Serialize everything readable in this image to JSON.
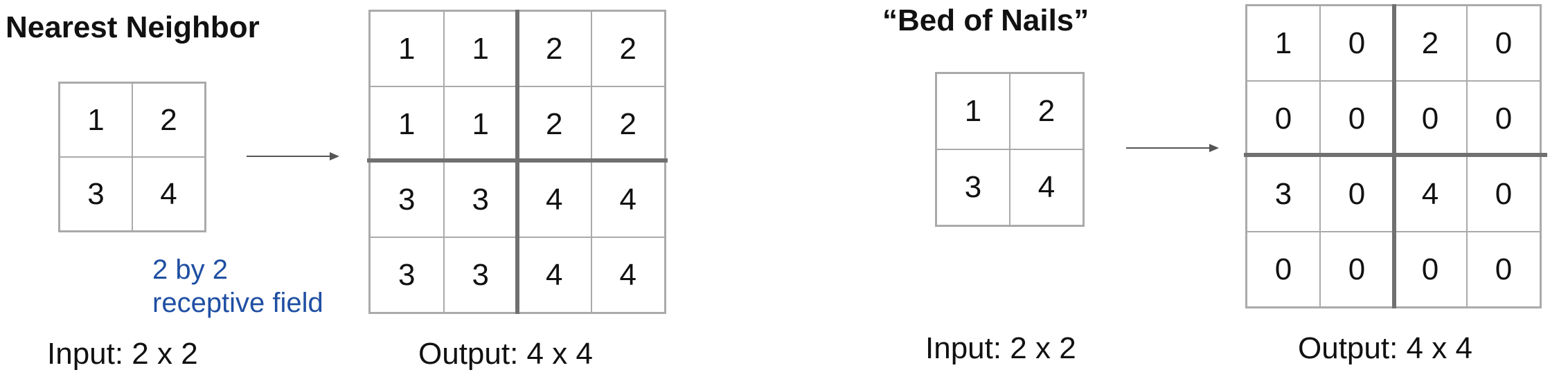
{
  "left_panel": {
    "title": "Nearest Neighbor",
    "input_cells": [
      "1",
      "2",
      "3",
      "4"
    ],
    "output_cells": [
      "1",
      "1",
      "2",
      "2",
      "1",
      "1",
      "2",
      "2",
      "3",
      "3",
      "4",
      "4",
      "3",
      "3",
      "4",
      "4"
    ],
    "note_line1": "2 by 2",
    "note_line2": "receptive field",
    "input_caption": "Input: 2 x 2",
    "output_caption": "Output: 4 x 4"
  },
  "right_panel": {
    "title": "“Bed of Nails”",
    "input_cells": [
      "1",
      "2",
      "3",
      "4"
    ],
    "output_cells": [
      "1",
      "0",
      "2",
      "0",
      "0",
      "0",
      "0",
      "0",
      "3",
      "0",
      "4",
      "0",
      "0",
      "0",
      "0",
      "0"
    ],
    "input_caption": "Input: 2 x 2",
    "output_caption": "Output: 4 x 4"
  },
  "colors": {
    "note_text": "#1f4fa3",
    "grid_line": "#aaaaaa",
    "divider": "#707070"
  }
}
